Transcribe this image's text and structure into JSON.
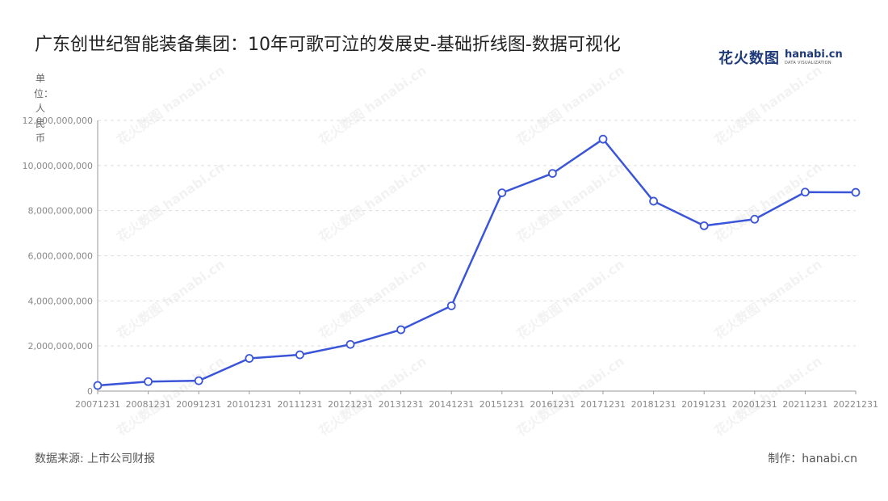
{
  "title": "广东创世纪智能装备集团：10年可歌可泣的发展史-基础折线图-数据可视化",
  "logo": {
    "cn": "花火数图",
    "en": "hanabi.cn",
    "en_sub": "DATA VISUALIZATION"
  },
  "watermark_text": "花火数图 hanabi.cn",
  "footer": {
    "source": "数据来源: 上市公司财报",
    "credit": "制作：hanabi.cn"
  },
  "colors": {
    "line": "#3b55d9",
    "grid": "#dddddd",
    "axis": "#999999",
    "tick_text": "#888888"
  },
  "chart_data": {
    "type": "line",
    "title": "广东创世纪智能装备集团：10年可歌可泣的发展史-基础折线图-数据可视化",
    "ylabel": "单位：人民币",
    "xlabel": "",
    "categories": [
      "20071231",
      "20081231",
      "20091231",
      "20101231",
      "20111231",
      "20121231",
      "20131231",
      "20141231",
      "20151231",
      "20161231",
      "20171231",
      "20181231",
      "20191231",
      "20201231",
      "20211231",
      "20221231"
    ],
    "series": [
      {
        "values": [
          250000000,
          420000000,
          460000000,
          1450000000,
          1610000000,
          2070000000,
          2720000000,
          3780000000,
          8790000000,
          9650000000,
          11170000000,
          8420000000,
          7330000000,
          7620000000,
          8820000000,
          8810000000
        ]
      }
    ],
    "ylim": [
      0,
      12000000000
    ],
    "yticks": [
      0,
      2000000000,
      4000000000,
      6000000000,
      8000000000,
      10000000000,
      12000000000
    ],
    "ytick_labels": [
      "0",
      "2,000,000,000",
      "4,000,000,000",
      "6,000,000,000",
      "8,000,000,000",
      "10,000,000,000",
      "12,000,000,000"
    ],
    "grid": true,
    "legend": "none"
  }
}
